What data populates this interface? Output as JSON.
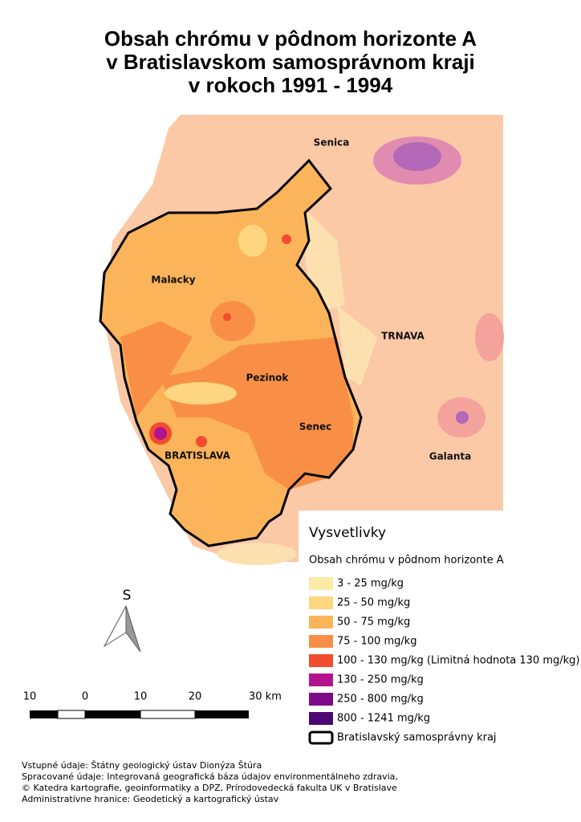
{
  "title": [
    "Obsah chrómu v pôdnom horizonte A",
    "v Bratislavskom samosprávnom kraji",
    "v rokoch 1991 - 1994"
  ],
  "places": [
    "Senica",
    "Malacky",
    "TRNAVA",
    "Pezinok",
    "Senec",
    "BRATISLAVA",
    "Galanta"
  ],
  "legend": {
    "title": "Vysvetlivky",
    "subtitle": "Obsah chrómu v pôdnom horizonte A",
    "classes": [
      {
        "label": "3 - 25 mg/kg",
        "color": "#fdeaa6"
      },
      {
        "label": "25 - 50 mg/kg",
        "color": "#fdd67f"
      },
      {
        "label": "50 - 75 mg/kg",
        "color": "#fbb45a"
      },
      {
        "label": "75 - 100 mg/kg",
        "color": "#f98f47"
      },
      {
        "label": "100 - 130 mg/kg (Limitná hodnota 130 mg/kg)",
        "color": "#f24c2e"
      },
      {
        "label": "130 - 250 mg/kg",
        "color": "#b4138f"
      },
      {
        "label": "250 - 800 mg/kg",
        "color": "#7d0a86"
      },
      {
        "label": "800 - 1241 mg/kg",
        "color": "#4b0870"
      }
    ],
    "boundary": "Bratislavský samosprávny kraj"
  },
  "north": "S",
  "scale": [
    "10",
    "0",
    "10",
    "20",
    "30 km"
  ],
  "sources": [
    "Vstupné údaje: Štátny geologický ústav Dionýza Štúra",
    "Spracované údaje: Integrovaná geografická báza údajov environmentálneho zdravia,",
    "© Katedra kartografie, geoinformatiky a DPZ, Prírodovedecká fakulta UK v Bratislave",
    "Administratívne hranice: Geodetický a kartografický ústav"
  ]
}
